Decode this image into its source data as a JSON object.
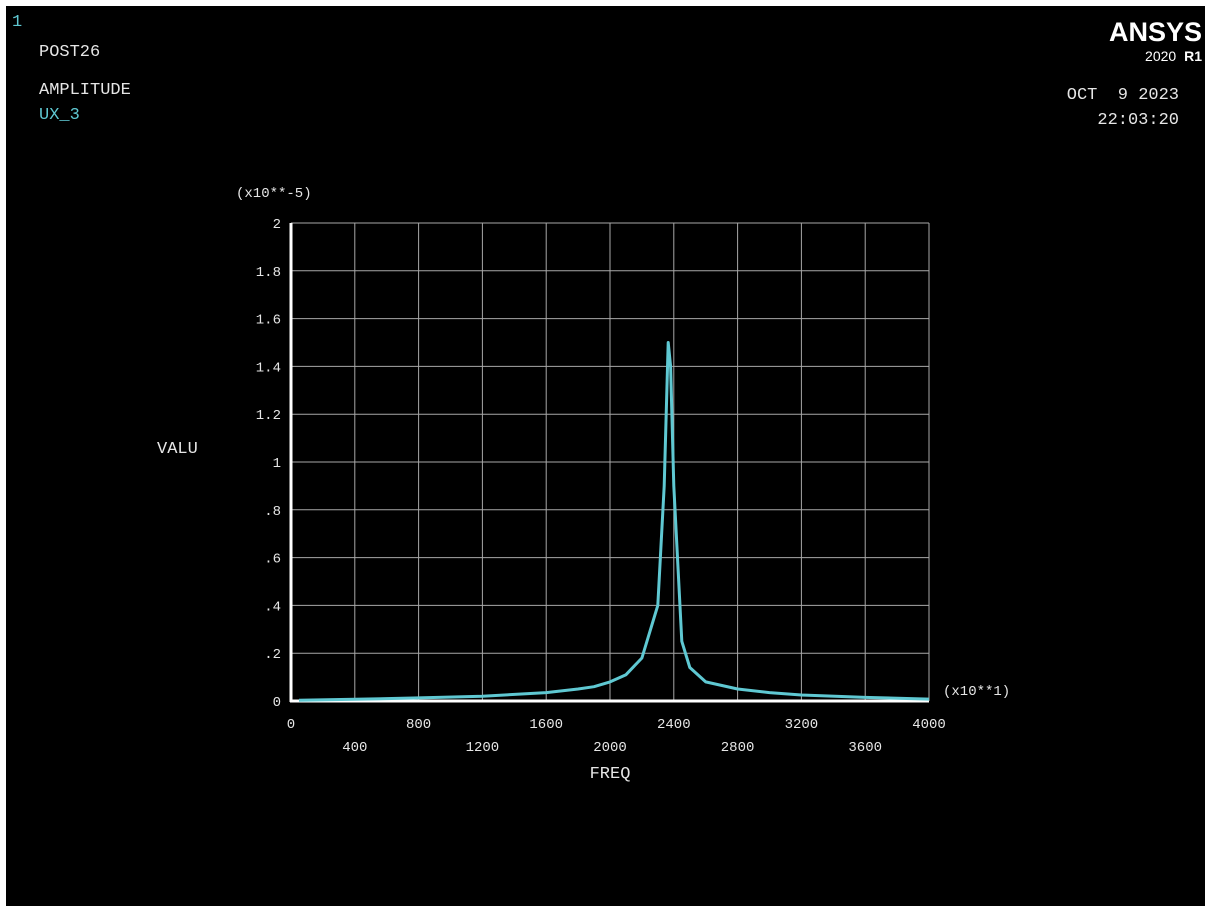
{
  "window_number": "1",
  "header": {
    "module": "POST26",
    "quantity": "AMPLITUDE",
    "variable": "UX_3",
    "date": "OCT  9 2023",
    "time": "22:03:20"
  },
  "logo": {
    "brand": "ANSYS",
    "version": "2020",
    "release": "R1"
  },
  "colors": {
    "background": "#000000",
    "text": "#e6e6e6",
    "curve": "#5fc8d2",
    "variable_label": "#5fc8d2",
    "grid": "#a8a8a8",
    "axis": "#ffffff"
  },
  "chart_data": {
    "type": "line",
    "xlabel": "FREQ",
    "ylabel": "VALU",
    "x_multiplier": "(x10**1)",
    "y_multiplier": "(x10**-5)",
    "xlim": [
      0,
      4000
    ],
    "ylim": [
      0,
      2
    ],
    "grid": true,
    "x_ticks": [
      {
        "value": 0,
        "label": "0",
        "row": "upper"
      },
      {
        "value": 400,
        "label": "400",
        "row": "lower"
      },
      {
        "value": 800,
        "label": "800",
        "row": "upper"
      },
      {
        "value": 1200,
        "label": "1200",
        "row": "lower"
      },
      {
        "value": 1600,
        "label": "1600",
        "row": "upper"
      },
      {
        "value": 2000,
        "label": "2000",
        "row": "lower"
      },
      {
        "value": 2400,
        "label": "2400",
        "row": "upper"
      },
      {
        "value": 2800,
        "label": "2800",
        "row": "lower"
      },
      {
        "value": 3200,
        "label": "3200",
        "row": "upper"
      },
      {
        "value": 3600,
        "label": "3600",
        "row": "lower"
      },
      {
        "value": 4000,
        "label": "4000",
        "row": "upper"
      }
    ],
    "y_ticks": [
      {
        "value": 0,
        "label": "0"
      },
      {
        "value": 0.2,
        "label": ".2"
      },
      {
        "value": 0.4,
        "label": ".4"
      },
      {
        "value": 0.6,
        "label": ".6"
      },
      {
        "value": 0.8,
        "label": ".8"
      },
      {
        "value": 1.0,
        "label": "1"
      },
      {
        "value": 1.2,
        "label": "1.2"
      },
      {
        "value": 1.4,
        "label": "1.4"
      },
      {
        "value": 1.6,
        "label": "1.6"
      },
      {
        "value": 1.8,
        "label": "1.8"
      },
      {
        "value": 2.0,
        "label": "2"
      }
    ],
    "series": [
      {
        "x": [
          50,
          400,
          800,
          1200,
          1600,
          1800,
          1900,
          2000,
          2100,
          2200,
          2300,
          2340,
          2365,
          2380,
          2400,
          2450,
          2500,
          2600,
          2800,
          3000,
          3200,
          3600,
          4000
        ],
        "y": [
          0.003,
          0.007,
          0.013,
          0.02,
          0.035,
          0.05,
          0.06,
          0.08,
          0.11,
          0.18,
          0.4,
          0.9,
          1.5,
          1.4,
          0.9,
          0.25,
          0.14,
          0.08,
          0.05,
          0.035,
          0.025,
          0.015,
          0.008
        ]
      }
    ]
  }
}
